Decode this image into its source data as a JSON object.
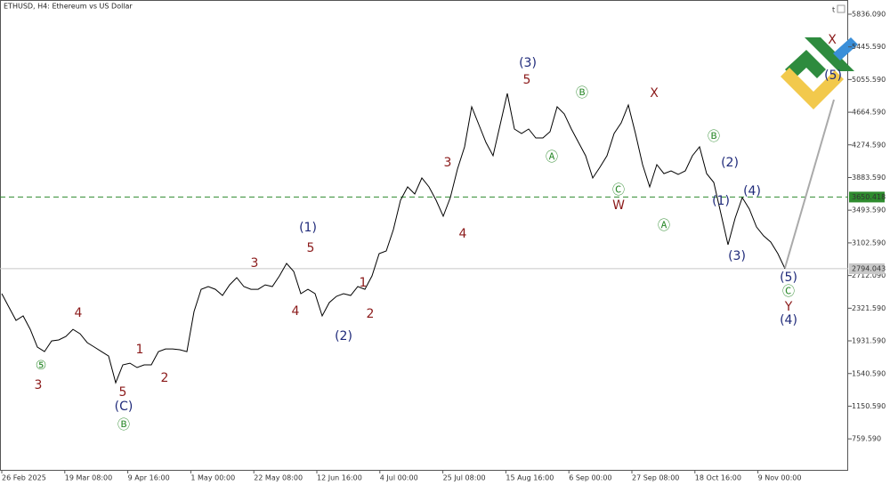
{
  "chart_data": {
    "type": "line",
    "title": "ETHUSD, H4:  Ethereum vs US Dollar",
    "color": "#000000",
    "values": [
      2495,
      2335,
      2176,
      2229,
      2069,
      1857,
      1803,
      1931,
      1942,
      1984,
      2069,
      2016,
      1910,
      1857,
      1803,
      1750,
      1431,
      1644,
      1665,
      1612,
      1644,
      1644,
      1803,
      1835,
      1835,
      1825,
      1803,
      2282,
      2548,
      2580,
      2548,
      2474,
      2601,
      2687,
      2580,
      2548,
      2548,
      2601,
      2580,
      2708,
      2857,
      2761,
      2495,
      2548,
      2495,
      2229,
      2389,
      2463,
      2495,
      2474,
      2580,
      2548,
      2708,
      2974,
      3006,
      3261,
      3612,
      3772,
      3687,
      3878,
      3772,
      3612,
      3421,
      3644,
      3985,
      4251,
      4729,
      4517,
      4304,
      4144,
      4517,
      4889,
      4463,
      4410,
      4463,
      4357,
      4357,
      4432,
      4729,
      4644,
      4463,
      4304,
      4144,
      3878,
      4006,
      4144,
      4410,
      4538,
      4751,
      4410,
      4038,
      3772,
      4038,
      3931,
      3963,
      3921,
      3963,
      4144,
      4251,
      3931,
      3825,
      3453,
      3080,
      3399,
      3644,
      3506,
      3293,
      3187,
      3112,
      2974,
      2794
    ],
    "ylim": [
      389,
      6006
    ],
    "yticks": [
      {
        "value": 5836.09,
        "label": "5836.090"
      },
      {
        "value": 5445.59,
        "label": "5445.590"
      },
      {
        "value": 5055.59,
        "label": "5055.590"
      },
      {
        "value": 4664.59,
        "label": "4664.590"
      },
      {
        "value": 4274.59,
        "label": "4274.590"
      },
      {
        "value": 3883.59,
        "label": "3883.590"
      },
      {
        "value": 3493.59,
        "label": "3493.590"
      },
      {
        "value": 3102.59,
        "label": "3102.590"
      },
      {
        "value": 2712.09,
        "label": "2712.090"
      },
      {
        "value": 2321.59,
        "label": "2321.590"
      },
      {
        "value": 1931.59,
        "label": "1931.590"
      },
      {
        "value": 1540.59,
        "label": "1540.590"
      },
      {
        "value": 1150.59,
        "label": "1150.590"
      },
      {
        "value": 759.59,
        "label": "759.590"
      }
    ],
    "xtick_labels": [
      "26 Feb 2025",
      "19 Mar 08:00",
      "9 Apr 16:00",
      "1 May 00:00",
      "22 May 08:00",
      "12 Jun 16:00",
      "4 Jul 00:00",
      "25 Jul 08:00",
      "15 Aug 16:00",
      "6 Sep 00:00",
      "27 Sep 08:00",
      "18 Oct 16:00",
      "9 Nov 00:00"
    ],
    "hlines": [
      {
        "value": 3650.418,
        "color": "#2e8b2e",
        "dashed": true
      },
      {
        "value": 2794.043,
        "color": "#c8c8c8",
        "dashed": false
      }
    ],
    "annotations": [
      {
        "text": "(3)",
        "color": "#1f2a7a"
      },
      {
        "text": "5",
        "color": "#8b1a1a"
      },
      {
        "text": "Ⓑ",
        "color": "#2e8b2e"
      },
      {
        "text": "X",
        "color": "#8b1a1a"
      },
      {
        "text": "Ⓑ",
        "color": "#2e8b2e"
      },
      {
        "text": "(2)",
        "color": "#1f2a7a"
      },
      {
        "text": "Ⓐ",
        "color": "#2e8b2e"
      },
      {
        "text": "3",
        "color": "#8b1a1a"
      },
      {
        "text": "Ⓒ",
        "color": "#2e8b2e"
      },
      {
        "text": "W",
        "color": "#8b1a1a"
      },
      {
        "text": "(4)",
        "color": "#1f2a7a"
      },
      {
        "text": "(1)",
        "color": "#1f2a7a"
      },
      {
        "text": "Ⓐ",
        "color": "#2e8b2e"
      },
      {
        "text": "(1)",
        "color": "#1f2a7a"
      },
      {
        "text": "4",
        "color": "#8b1a1a"
      },
      {
        "text": "5",
        "color": "#8b1a1a"
      },
      {
        "text": "3",
        "color": "#8b1a1a"
      },
      {
        "text": "(3)",
        "color": "#1f2a7a"
      },
      {
        "text": "(5)",
        "color": "#1f2a7a"
      },
      {
        "text": "1",
        "color": "#8b1a1a"
      },
      {
        "text": "Ⓒ",
        "color": "#2e8b2e"
      },
      {
        "text": "Y",
        "color": "#8b1a1a"
      },
      {
        "text": "(4)",
        "color": "#1f2a7a"
      },
      {
        "text": "4",
        "color": "#8b1a1a"
      },
      {
        "text": "2",
        "color": "#8b1a1a"
      },
      {
        "text": "4",
        "color": "#8b1a1a"
      },
      {
        "text": "(2)",
        "color": "#1f2a7a"
      },
      {
        "text": "1",
        "color": "#8b1a1a"
      },
      {
        "text": "⑤",
        "color": "#2e8b2e"
      },
      {
        "text": "2",
        "color": "#8b1a1a"
      },
      {
        "text": "3",
        "color": "#8b1a1a"
      },
      {
        "text": "5",
        "color": "#8b1a1a"
      },
      {
        "text": "(C)",
        "color": "#1f2a7a"
      },
      {
        "text": "Ⓑ",
        "color": "#2e8b2e"
      },
      {
        "text": "X",
        "color": "#8b1a1a"
      },
      {
        "text": "(5)",
        "color": "#1f2a7a"
      }
    ]
  }
}
